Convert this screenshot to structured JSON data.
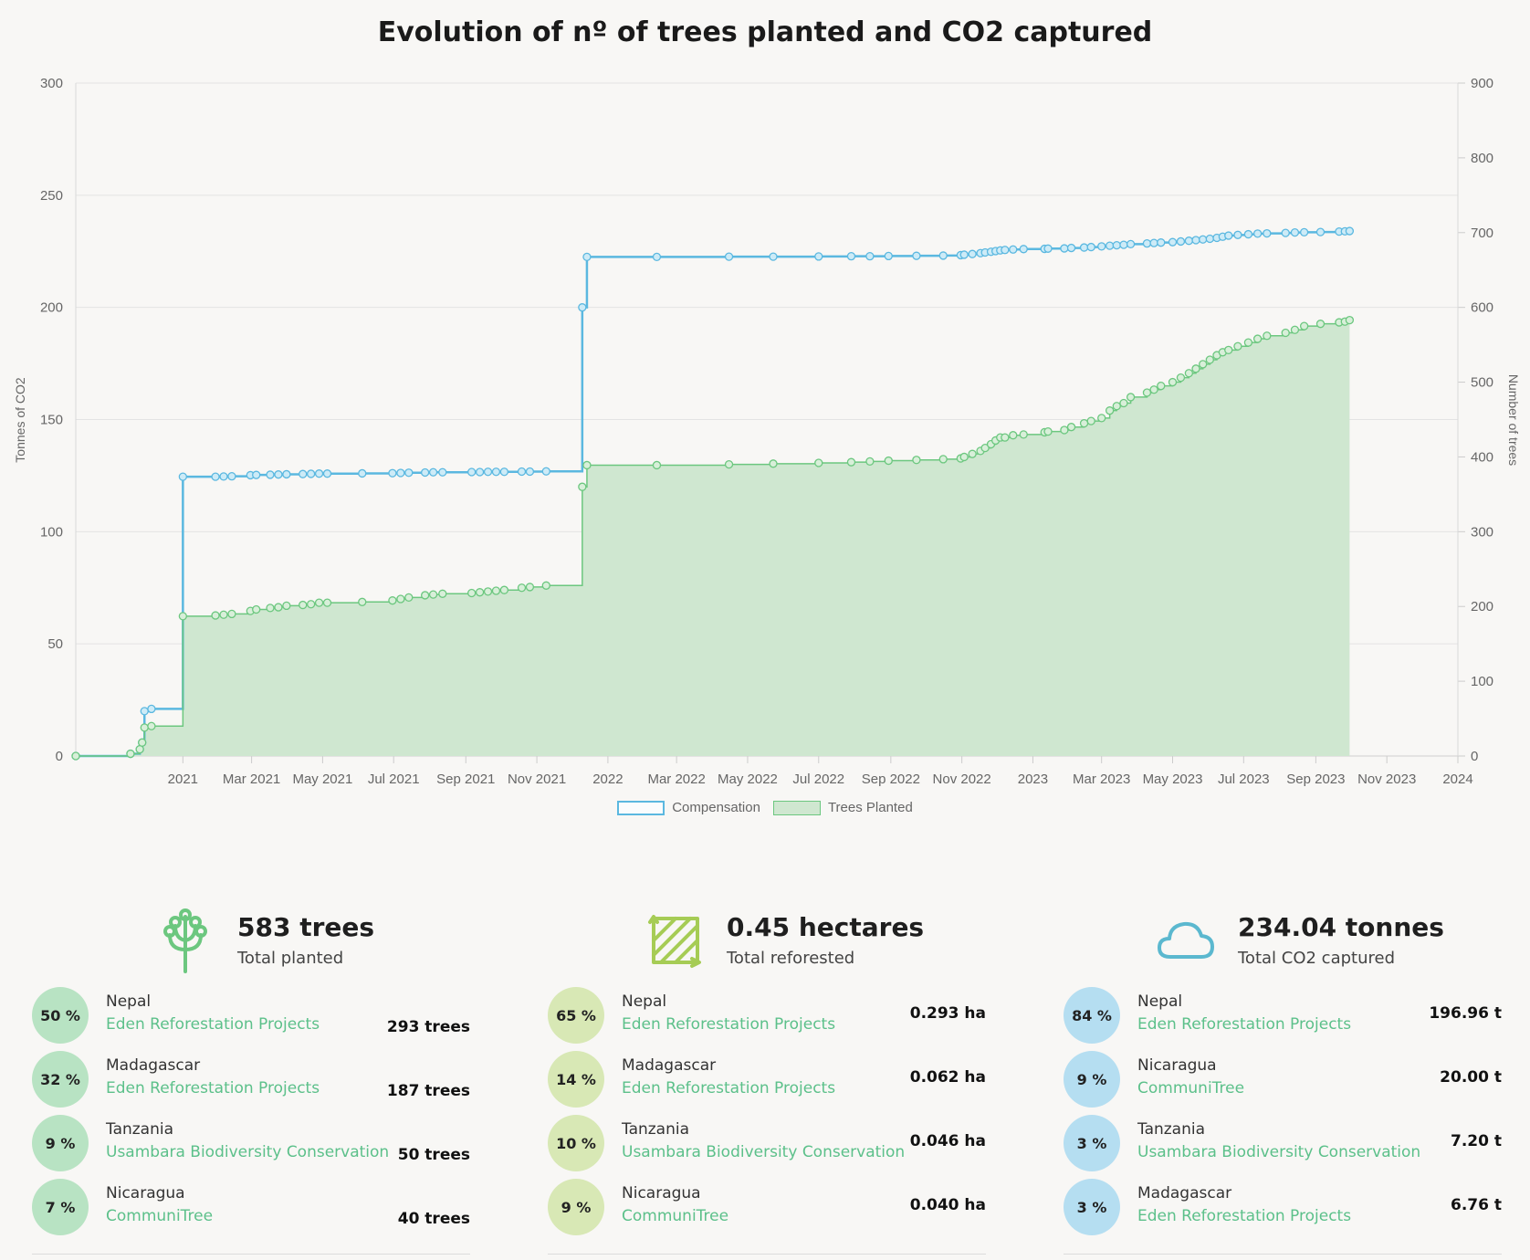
{
  "chart_data": {
    "type": "line",
    "title": "Evolution of nº of trees planted and CO2 captured",
    "ylabel": "Tonnes of CO2",
    "y2label": "Number of trees",
    "ylim": [
      0,
      300
    ],
    "y2lim": [
      0,
      900
    ],
    "xlim": [
      "2020-10-01",
      "2024-01-01"
    ],
    "yticks": [
      0,
      50,
      100,
      150,
      200,
      250,
      300
    ],
    "y2ticks": [
      0,
      100,
      200,
      300,
      400,
      500,
      600,
      700,
      800,
      900
    ],
    "xticks": [
      {
        "date": "2021-01-01",
        "label": "2021"
      },
      {
        "date": "2021-03-01",
        "label": "Mar 2021"
      },
      {
        "date": "2021-05-01",
        "label": "May 2021"
      },
      {
        "date": "2021-07-01",
        "label": "Jul 2021"
      },
      {
        "date": "2021-09-01",
        "label": "Sep 2021"
      },
      {
        "date": "2021-11-01",
        "label": "Nov 2021"
      },
      {
        "date": "2022-01-01",
        "label": "2022"
      },
      {
        "date": "2022-03-01",
        "label": "Mar 2022"
      },
      {
        "date": "2022-05-01",
        "label": "May 2022"
      },
      {
        "date": "2022-07-01",
        "label": "Jul 2022"
      },
      {
        "date": "2022-09-01",
        "label": "Sep 2022"
      },
      {
        "date": "2022-11-01",
        "label": "Nov 2022"
      },
      {
        "date": "2023-01-01",
        "label": "2023"
      },
      {
        "date": "2023-03-01",
        "label": "Mar 2023"
      },
      {
        "date": "2023-05-01",
        "label": "May 2023"
      },
      {
        "date": "2023-07-01",
        "label": "Jul 2023"
      },
      {
        "date": "2023-09-01",
        "label": "Sep 2023"
      },
      {
        "date": "2023-11-01",
        "label": "Nov 2023"
      },
      {
        "date": "2024-01-01",
        "label": "2024"
      }
    ],
    "grid": true,
    "legend_position": "bottom",
    "series": [
      {
        "name": "Compensation",
        "axis": "left",
        "color": "#5bb8e0",
        "step": true,
        "points": [
          [
            "2020-10-01",
            0
          ],
          [
            "2020-11-17",
            1
          ],
          [
            "2020-11-25",
            3
          ],
          [
            "2020-11-27",
            6
          ],
          [
            "2020-11-29",
            20
          ],
          [
            "2020-12-05",
            21
          ],
          [
            "2021-01-01",
            124.5
          ],
          [
            "2021-01-29",
            124.5
          ],
          [
            "2021-02-05",
            124.6
          ],
          [
            "2021-02-12",
            124.7
          ],
          [
            "2021-02-28",
            125.2
          ],
          [
            "2021-03-05",
            125.3
          ],
          [
            "2021-03-17",
            125.4
          ],
          [
            "2021-03-24",
            125.5
          ],
          [
            "2021-03-31",
            125.6
          ],
          [
            "2021-04-14",
            125.7
          ],
          [
            "2021-04-21",
            125.8
          ],
          [
            "2021-04-28",
            125.9
          ],
          [
            "2021-05-05",
            125.9
          ],
          [
            "2021-06-04",
            126.0
          ],
          [
            "2021-06-30",
            126.1
          ],
          [
            "2021-07-07",
            126.2
          ],
          [
            "2021-07-14",
            126.3
          ],
          [
            "2021-07-28",
            126.4
          ],
          [
            "2021-08-04",
            126.5
          ],
          [
            "2021-08-12",
            126.5
          ],
          [
            "2021-09-06",
            126.6
          ],
          [
            "2021-09-13",
            126.6
          ],
          [
            "2021-09-20",
            126.7
          ],
          [
            "2021-09-27",
            126.7
          ],
          [
            "2021-10-04",
            126.7
          ],
          [
            "2021-10-19",
            126.8
          ],
          [
            "2021-10-26",
            126.8
          ],
          [
            "2021-11-09",
            126.9
          ],
          [
            "2021-12-10",
            200
          ],
          [
            "2021-12-14",
            222.5
          ],
          [
            "2022-02-12",
            222.5
          ],
          [
            "2022-04-15",
            222.6
          ],
          [
            "2022-05-23",
            222.6
          ],
          [
            "2022-07-01",
            222.7
          ],
          [
            "2022-07-29",
            222.8
          ],
          [
            "2022-08-14",
            222.8
          ],
          [
            "2022-08-30",
            222.9
          ],
          [
            "2022-09-23",
            223.0
          ],
          [
            "2022-10-16",
            223.1
          ],
          [
            "2022-10-31",
            223.3
          ],
          [
            "2022-11-03",
            223.5
          ],
          [
            "2022-11-10",
            223.8
          ],
          [
            "2022-11-17",
            224.2
          ],
          [
            "2022-11-21",
            224.5
          ],
          [
            "2022-11-26",
            224.8
          ],
          [
            "2022-11-30",
            225.1
          ],
          [
            "2022-12-04",
            225.4
          ],
          [
            "2022-12-08",
            225.6
          ],
          [
            "2022-12-15",
            225.8
          ],
          [
            "2022-12-24",
            226.0
          ],
          [
            "2023-01-11",
            226.1
          ],
          [
            "2023-01-14",
            226.2
          ],
          [
            "2023-01-28",
            226.3
          ],
          [
            "2023-02-03",
            226.5
          ],
          [
            "2023-02-14",
            226.7
          ],
          [
            "2023-02-20",
            226.9
          ],
          [
            "2023-03-01",
            227.2
          ],
          [
            "2023-03-08",
            227.5
          ],
          [
            "2023-03-14",
            227.7
          ],
          [
            "2023-03-20",
            227.9
          ],
          [
            "2023-03-26",
            228.2
          ],
          [
            "2023-04-09",
            228.5
          ],
          [
            "2023-04-15",
            228.7
          ],
          [
            "2023-04-21",
            228.9
          ],
          [
            "2023-05-01",
            229.1
          ],
          [
            "2023-05-08",
            229.4
          ],
          [
            "2023-05-15",
            229.7
          ],
          [
            "2023-05-21",
            230.0
          ],
          [
            "2023-05-27",
            230.3
          ],
          [
            "2023-06-02",
            230.6
          ],
          [
            "2023-06-08",
            231.0
          ],
          [
            "2023-06-13",
            231.5
          ],
          [
            "2023-06-18",
            232.0
          ],
          [
            "2023-06-26",
            232.3
          ],
          [
            "2023-07-05",
            232.6
          ],
          [
            "2023-07-13",
            232.9
          ],
          [
            "2023-07-21",
            233.0
          ],
          [
            "2023-08-06",
            233.2
          ],
          [
            "2023-08-14",
            233.4
          ],
          [
            "2023-08-22",
            233.5
          ],
          [
            "2023-09-05",
            233.6
          ],
          [
            "2023-09-21",
            233.8
          ],
          [
            "2023-09-26",
            233.9
          ],
          [
            "2023-09-30",
            234.04
          ]
        ]
      },
      {
        "name": "Trees Planted",
        "axis": "right",
        "color": "#6cc77f",
        "fill": "#cfe7d0",
        "step": true,
        "points": [
          [
            "2020-10-01",
            0
          ],
          [
            "2020-11-17",
            3
          ],
          [
            "2020-11-25",
            9
          ],
          [
            "2020-11-27",
            18
          ],
          [
            "2020-11-29",
            38
          ],
          [
            "2020-12-05",
            40
          ],
          [
            "2021-01-01",
            187
          ],
          [
            "2021-01-29",
            188
          ],
          [
            "2021-02-05",
            189
          ],
          [
            "2021-02-12",
            190
          ],
          [
            "2021-02-28",
            194
          ],
          [
            "2021-03-05",
            196
          ],
          [
            "2021-03-17",
            198
          ],
          [
            "2021-03-24",
            199
          ],
          [
            "2021-03-31",
            201
          ],
          [
            "2021-04-14",
            202
          ],
          [
            "2021-04-21",
            203
          ],
          [
            "2021-04-28",
            205
          ],
          [
            "2021-05-05",
            205
          ],
          [
            "2021-06-04",
            206
          ],
          [
            "2021-06-30",
            208
          ],
          [
            "2021-07-07",
            210
          ],
          [
            "2021-07-14",
            212
          ],
          [
            "2021-07-28",
            215
          ],
          [
            "2021-08-04",
            216
          ],
          [
            "2021-08-12",
            217
          ],
          [
            "2021-09-06",
            218
          ],
          [
            "2021-09-13",
            219
          ],
          [
            "2021-09-20",
            220
          ],
          [
            "2021-09-27",
            221
          ],
          [
            "2021-10-04",
            222
          ],
          [
            "2021-10-19",
            225
          ],
          [
            "2021-10-26",
            226
          ],
          [
            "2021-11-09",
            228
          ],
          [
            "2021-12-10",
            360
          ],
          [
            "2021-12-14",
            389
          ],
          [
            "2022-02-12",
            389
          ],
          [
            "2022-04-15",
            390
          ],
          [
            "2022-05-23",
            391
          ],
          [
            "2022-07-01",
            392
          ],
          [
            "2022-07-29",
            393
          ],
          [
            "2022-08-14",
            394
          ],
          [
            "2022-08-30",
            395
          ],
          [
            "2022-09-23",
            396
          ],
          [
            "2022-10-16",
            397
          ],
          [
            "2022-10-31",
            398
          ],
          [
            "2022-11-03",
            400
          ],
          [
            "2022-11-10",
            404
          ],
          [
            "2022-11-17",
            408
          ],
          [
            "2022-11-21",
            412
          ],
          [
            "2022-11-26",
            417
          ],
          [
            "2022-11-30",
            422
          ],
          [
            "2022-12-04",
            426
          ],
          [
            "2022-12-08",
            426
          ],
          [
            "2022-12-15",
            429
          ],
          [
            "2022-12-24",
            430
          ],
          [
            "2023-01-11",
            433
          ],
          [
            "2023-01-14",
            434
          ],
          [
            "2023-01-28",
            436
          ],
          [
            "2023-02-03",
            440
          ],
          [
            "2023-02-14",
            445
          ],
          [
            "2023-02-20",
            448
          ],
          [
            "2023-03-01",
            452
          ],
          [
            "2023-03-08",
            462
          ],
          [
            "2023-03-14",
            468
          ],
          [
            "2023-03-20",
            472
          ],
          [
            "2023-03-26",
            480
          ],
          [
            "2023-04-09",
            486
          ],
          [
            "2023-04-15",
            490
          ],
          [
            "2023-04-21",
            495
          ],
          [
            "2023-05-01",
            500
          ],
          [
            "2023-05-08",
            506
          ],
          [
            "2023-05-15",
            512
          ],
          [
            "2023-05-21",
            518
          ],
          [
            "2023-05-27",
            524
          ],
          [
            "2023-06-02",
            530
          ],
          [
            "2023-06-08",
            536
          ],
          [
            "2023-06-13",
            540
          ],
          [
            "2023-06-18",
            543
          ],
          [
            "2023-06-26",
            548
          ],
          [
            "2023-07-05",
            553
          ],
          [
            "2023-07-13",
            558
          ],
          [
            "2023-07-21",
            562
          ],
          [
            "2023-08-06",
            566
          ],
          [
            "2023-08-14",
            570
          ],
          [
            "2023-08-22",
            575
          ],
          [
            "2023-09-05",
            578
          ],
          [
            "2023-09-21",
            580
          ],
          [
            "2023-09-26",
            581
          ],
          [
            "2023-09-30",
            583
          ]
        ]
      }
    ]
  },
  "colors": {
    "compensation": "#5bb8e0",
    "trees": "#6cc77f",
    "trees_fill": "#cfe7d0",
    "project_link": "#5cc08a",
    "badge_trees": "#b8e3c3",
    "badge_hectares": "#d8e8b5",
    "badge_co2": "#b5def1"
  },
  "summary": [
    {
      "icon": "tree-icon",
      "value": "583 trees",
      "label": "Total planted",
      "badge_color": "#b8e3c3",
      "rows": [
        {
          "percent": "50 %",
          "country": "Nepal",
          "project": "Eden Reforestation Projects",
          "amount": "293 trees"
        },
        {
          "percent": "32 %",
          "country": "Madagascar",
          "project": "Eden Reforestation Projects",
          "amount": "187 trees"
        },
        {
          "percent": "9 %",
          "country": "Tanzania",
          "project": "Usambara Biodiversity Conservation",
          "amount": "50 trees"
        },
        {
          "percent": "7 %",
          "country": "Nicaragua",
          "project": "CommuniTree",
          "amount": "40 trees"
        }
      ]
    },
    {
      "icon": "area-icon",
      "value": "0.45 hectares",
      "label": "Total reforested",
      "badge_color": "#d8e8b5",
      "rows": [
        {
          "percent": "65 %",
          "country": "Nepal",
          "project": "Eden Reforestation Projects",
          "amount": "0.293 ha"
        },
        {
          "percent": "14 %",
          "country": "Madagascar",
          "project": "Eden Reforestation Projects",
          "amount": "0.062 ha"
        },
        {
          "percent": "10 %",
          "country": "Tanzania",
          "project": "Usambara Biodiversity Conservation",
          "amount": "0.046 ha"
        },
        {
          "percent": "9 %",
          "country": "Nicaragua",
          "project": "CommuniTree",
          "amount": "0.040 ha"
        }
      ]
    },
    {
      "icon": "cloud-icon",
      "value": "234.04 tonnes",
      "label": "Total CO2 captured",
      "badge_color": "#b5def1",
      "rows": [
        {
          "percent": "84 %",
          "country": "Nepal",
          "project": "Eden Reforestation Projects",
          "amount": "196.96 t"
        },
        {
          "percent": "9 %",
          "country": "Nicaragua",
          "project": "CommuniTree",
          "amount": "20.00 t"
        },
        {
          "percent": "3 %",
          "country": "Tanzania",
          "project": "Usambara Biodiversity Conservation",
          "amount": "7.20 t"
        },
        {
          "percent": "3 %",
          "country": "Madagascar",
          "project": "Eden Reforestation Projects",
          "amount": "6.76 t"
        }
      ]
    }
  ]
}
